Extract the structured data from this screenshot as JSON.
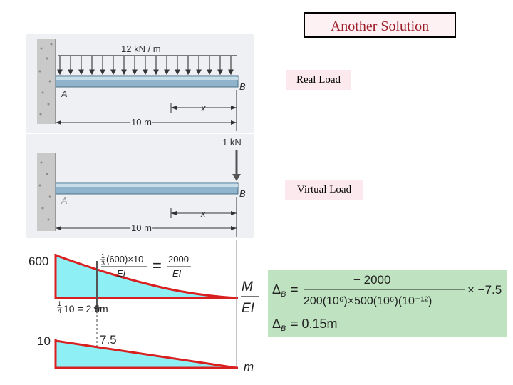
{
  "slide": {
    "title": "Another Solution",
    "real_load_tag": "Real Load",
    "virtual_load_tag": "Virtual Load"
  },
  "real_beam": {
    "load_label": "12 kN / m",
    "end_a": "A",
    "end_b": "B",
    "x_label": "x",
    "length_label": "10 m"
  },
  "virtual_beam": {
    "load_label": "1 kN",
    "end_a": "A",
    "end_b": "B",
    "x_label": "x",
    "length_label": "10 m"
  },
  "me_diagram": {
    "peak_value": "600",
    "area_expr_prefix": "(600)×10",
    "area_expr_den": "EI",
    "equals": "=",
    "area_result_num": "2000",
    "area_result_den": "EI",
    "centroid_expr": "10 = 2.5m",
    "label_num": "M",
    "label_den": "EI"
  },
  "m_diagram": {
    "peak_value": "10",
    "centroid_value": "7.5",
    "label": "m"
  },
  "result": {
    "line1_lhs": "Δ",
    "line1_sub": "B",
    "line1_num": "− 2000",
    "line1_den": "200(10⁶)×500(10⁶)(10⁻¹²)",
    "line1_tail": "× −7.5",
    "line2_lhs": "Δ",
    "line2_sub": "B",
    "line2_rhs": "= 0.15m"
  }
}
